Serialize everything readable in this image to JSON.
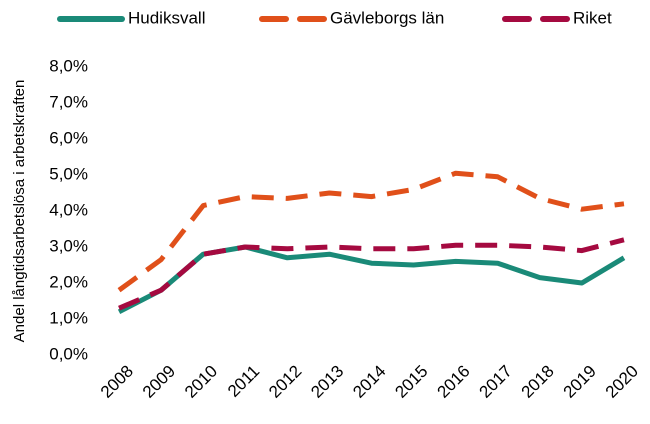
{
  "chart_data": {
    "type": "line",
    "y_label": "Andel långtidsarbetslösa i arbetskraften",
    "categories": [
      "2008",
      "2009",
      "2010",
      "2011",
      "2012",
      "2013",
      "2014",
      "2015",
      "2016",
      "2017",
      "2018",
      "2019",
      "2020"
    ],
    "series": [
      {
        "name": "Hudiksvall",
        "color": "#1a8a78",
        "style": "solid",
        "values": [
          1.2,
          1.8,
          2.8,
          3.0,
          2.7,
          2.8,
          2.55,
          2.5,
          2.6,
          2.55,
          2.15,
          2.0,
          2.7
        ]
      },
      {
        "name": "Gävleborgs län",
        "color": "#e0501a",
        "style": "dashed",
        "values": [
          1.8,
          2.65,
          4.15,
          4.4,
          4.35,
          4.5,
          4.4,
          4.6,
          5.05,
          4.95,
          4.35,
          4.05,
          4.2
        ]
      },
      {
        "name": "Riket",
        "color": "#a50a40",
        "style": "dashed",
        "values": [
          1.3,
          1.8,
          2.8,
          3.0,
          2.95,
          3.0,
          2.95,
          2.95,
          3.05,
          3.05,
          3.0,
          2.9,
          3.2
        ]
      }
    ],
    "ylim": [
      0,
      8
    ],
    "yticks": [
      {
        "value": 0,
        "label": "0,0%"
      },
      {
        "value": 1,
        "label": "1,0%"
      },
      {
        "value": 2,
        "label": "2,0%"
      },
      {
        "value": 3,
        "label": "3,0%"
      },
      {
        "value": 4,
        "label": "4,0%"
      },
      {
        "value": 5,
        "label": "5,0%"
      },
      {
        "value": 6,
        "label": "6,0%"
      },
      {
        "value": 7,
        "label": "7,0%"
      },
      {
        "value": 8,
        "label": "8,0%"
      }
    ],
    "legend": "top"
  }
}
